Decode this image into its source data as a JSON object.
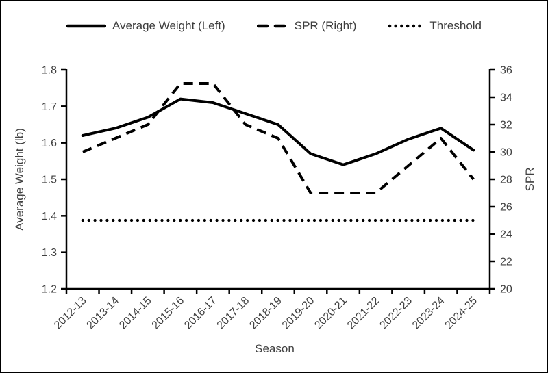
{
  "chart_data": {
    "type": "line",
    "title": "",
    "xlabel": "Season",
    "ylabel_left": "Average Weight (lb)",
    "ylabel_right": "SPR",
    "categories": [
      "2012-13",
      "2013-14",
      "2014-15",
      "2015-16",
      "2016-17",
      "2017-18",
      "2018-19",
      "2019-20",
      "2020-21",
      "2021-22",
      "2022-23",
      "2023-24",
      "2024-25"
    ],
    "left_axis": {
      "min": 1.2,
      "max": 1.8,
      "step": 0.1,
      "decimals": 1
    },
    "right_axis": {
      "min": 20,
      "max": 36,
      "step": 2,
      "decimals": 0
    },
    "grid": "off",
    "legend_position": "top",
    "series": [
      {
        "name": "Average Weight (Left)",
        "axis": "left",
        "style": "solid",
        "values": [
          1.62,
          1.64,
          1.67,
          1.72,
          1.71,
          1.68,
          1.65,
          1.57,
          1.54,
          1.57,
          1.61,
          1.64,
          1.58
        ]
      },
      {
        "name": "SPR (Right)",
        "axis": "right",
        "style": "dashed",
        "values": [
          30,
          31,
          32,
          35,
          35,
          32,
          31,
          27,
          27,
          27,
          29,
          31,
          28
        ]
      },
      {
        "name": "Threshold",
        "axis": "right",
        "style": "dotted",
        "values": [
          25,
          25,
          25,
          25,
          25,
          25,
          25,
          25,
          25,
          25,
          25,
          25,
          25
        ]
      }
    ],
    "colors": {
      "line": "#000000",
      "text": "#404040",
      "border": "#000000",
      "background": "#ffffff"
    }
  }
}
